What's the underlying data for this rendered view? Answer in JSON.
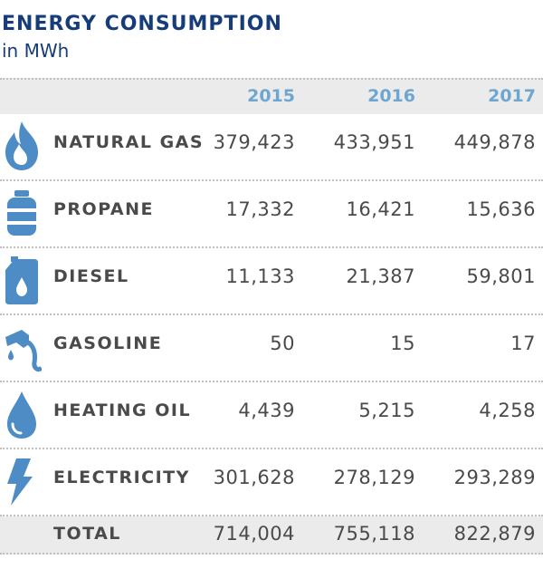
{
  "header": {
    "title": "ENERGY CONSUMPTION",
    "subtitle": "in MWh"
  },
  "chart_data": {
    "type": "table",
    "title": "ENERGY CONSUMPTION",
    "unit": "in MWh",
    "columns": [
      "2015",
      "2016",
      "2017"
    ],
    "rows": [
      {
        "label": "NATURAL GAS",
        "icon": "flame-icon",
        "values": [
          "379,423",
          "433,951",
          "449,878"
        ]
      },
      {
        "label": "PROPANE",
        "icon": "propane-tank-icon",
        "values": [
          "17,332",
          "16,421",
          "15,636"
        ]
      },
      {
        "label": "DIESEL",
        "icon": "diesel-canister-icon",
        "values": [
          "11,133",
          "21,387",
          "59,801"
        ]
      },
      {
        "label": "GASOLINE",
        "icon": "fuel-nozzle-icon",
        "values": [
          "50",
          "15",
          "17"
        ]
      },
      {
        "label": "HEATING OIL",
        "icon": "oil-drop-icon",
        "values": [
          "4,439",
          "5,215",
          "4,258"
        ]
      },
      {
        "label": "ELECTRICITY",
        "icon": "lightning-bolt-icon",
        "values": [
          "301,628",
          "278,129",
          "293,289"
        ]
      }
    ],
    "total": {
      "label": "TOTAL",
      "values": [
        "714,004",
        "755,118",
        "822,879"
      ]
    }
  },
  "colors": {
    "title": "#163c7a",
    "year_header": "#6ea6d2",
    "icon": "#4d8cc4",
    "text": "#4a4a4a",
    "band": "#ebebeb"
  }
}
